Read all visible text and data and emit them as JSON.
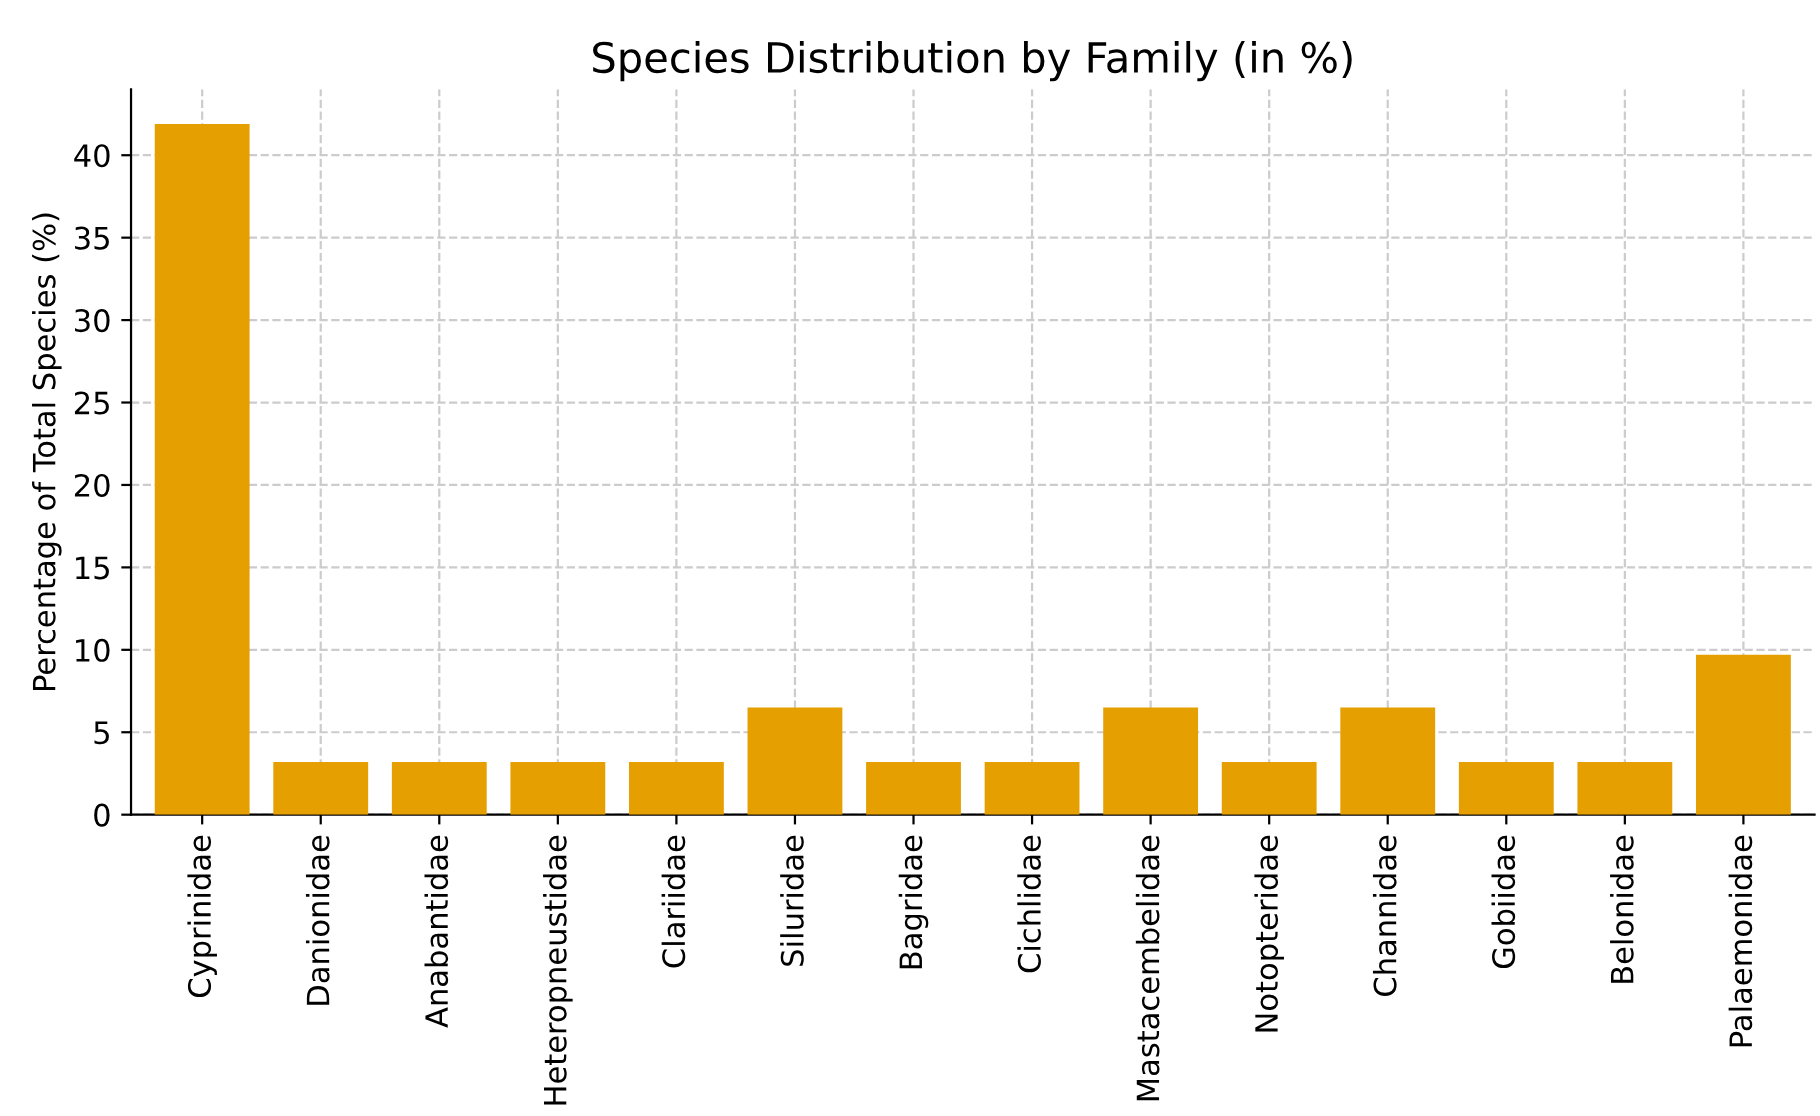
{
  "chart_data": {
    "type": "bar",
    "title": "Species Distribution by Family (in %)",
    "ylabel": "Percentage of Total Species (%)",
    "categories": [
      "Cyprinidae",
      "Danionidae",
      "Anabantidae",
      "Heteropneustidae",
      "Clariidae",
      "Siluridae",
      "Bagridae",
      "Cichlidae",
      "Mastacembelidae",
      "Notopteridae",
      "Channidae",
      "Gobiidae",
      "Belonidae",
      "Palaemonidae"
    ],
    "values": [
      41.9,
      3.2,
      3.2,
      3.2,
      3.2,
      6.5,
      3.2,
      3.2,
      6.5,
      3.2,
      6.5,
      3.2,
      3.2,
      9.7
    ],
    "color": "#e69f00",
    "ylim": [
      0,
      44
    ],
    "yticks": [
      0,
      5,
      10,
      15,
      20,
      25,
      30,
      35,
      40
    ],
    "grid": true
  }
}
